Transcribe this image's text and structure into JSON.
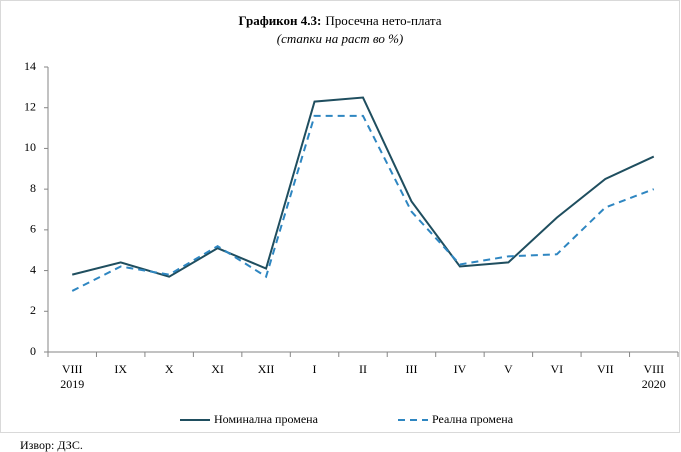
{
  "chart_data": {
    "type": "line",
    "title_label": "Графикон 4.3:",
    "title": "Просечна нето-плата",
    "subtitle": "(стапки на раст во %)",
    "categories": [
      "VIII",
      "IX",
      "X",
      "XI",
      "XII",
      "I",
      "II",
      "III",
      "IV",
      "V",
      "VI",
      "VII",
      "VIII"
    ],
    "year_start": "2019",
    "year_end": "2020",
    "series": [
      {
        "name": "Номинална промена",
        "color": "#1f4e5f",
        "dash": "solid",
        "values": [
          3.8,
          4.4,
          3.7,
          5.1,
          4.1,
          12.3,
          12.5,
          7.4,
          4.2,
          4.4,
          6.6,
          8.5,
          9.6
        ]
      },
      {
        "name": "Реална промена",
        "color": "#2e86c1",
        "dash": "dashed",
        "values": [
          3.0,
          4.2,
          3.8,
          5.2,
          3.7,
          11.6,
          11.6,
          6.9,
          4.3,
          4.7,
          4.8,
          7.1,
          8.0
        ]
      }
    ],
    "ylim": [
      0,
      14
    ],
    "yticks": [
      0,
      2,
      4,
      6,
      8,
      10,
      12,
      14
    ],
    "grid": false,
    "legend": "bottom",
    "source": "Извор: ДЗС."
  }
}
